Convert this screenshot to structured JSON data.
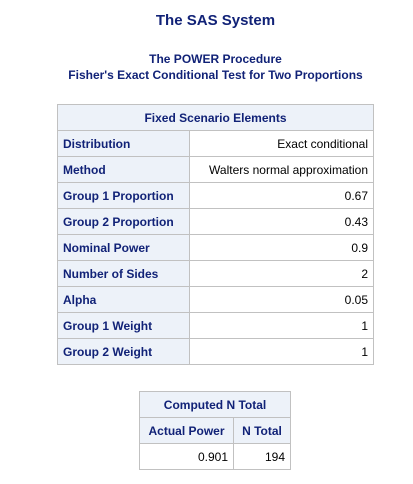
{
  "header": {
    "system_title": "The SAS System",
    "procedure_title": "The POWER Procedure",
    "test_title": "Fisher's Exact Conditional Test for Two Proportions"
  },
  "scenario_table": {
    "caption": "Fixed Scenario Elements",
    "rows": [
      {
        "label": "Distribution",
        "value": "Exact conditional"
      },
      {
        "label": "Method",
        "value": "Walters normal approximation"
      },
      {
        "label": "Group 1 Proportion",
        "value": "0.67"
      },
      {
        "label": "Group 2 Proportion",
        "value": "0.43"
      },
      {
        "label": "Nominal Power",
        "value": "0.9"
      },
      {
        "label": "Number of Sides",
        "value": "2"
      },
      {
        "label": "Alpha",
        "value": "0.05"
      },
      {
        "label": "Group 1 Weight",
        "value": "1"
      },
      {
        "label": "Group 2 Weight",
        "value": "1"
      }
    ]
  },
  "computed_table": {
    "caption": "Computed N Total",
    "columns": [
      "Actual Power",
      "N Total"
    ],
    "rows": [
      {
        "actual_power": "0.901",
        "n_total": "194"
      }
    ]
  },
  "colors": {
    "header_text": "#112277",
    "header_background": "#edf2f9",
    "border": "#c1c1c1"
  }
}
